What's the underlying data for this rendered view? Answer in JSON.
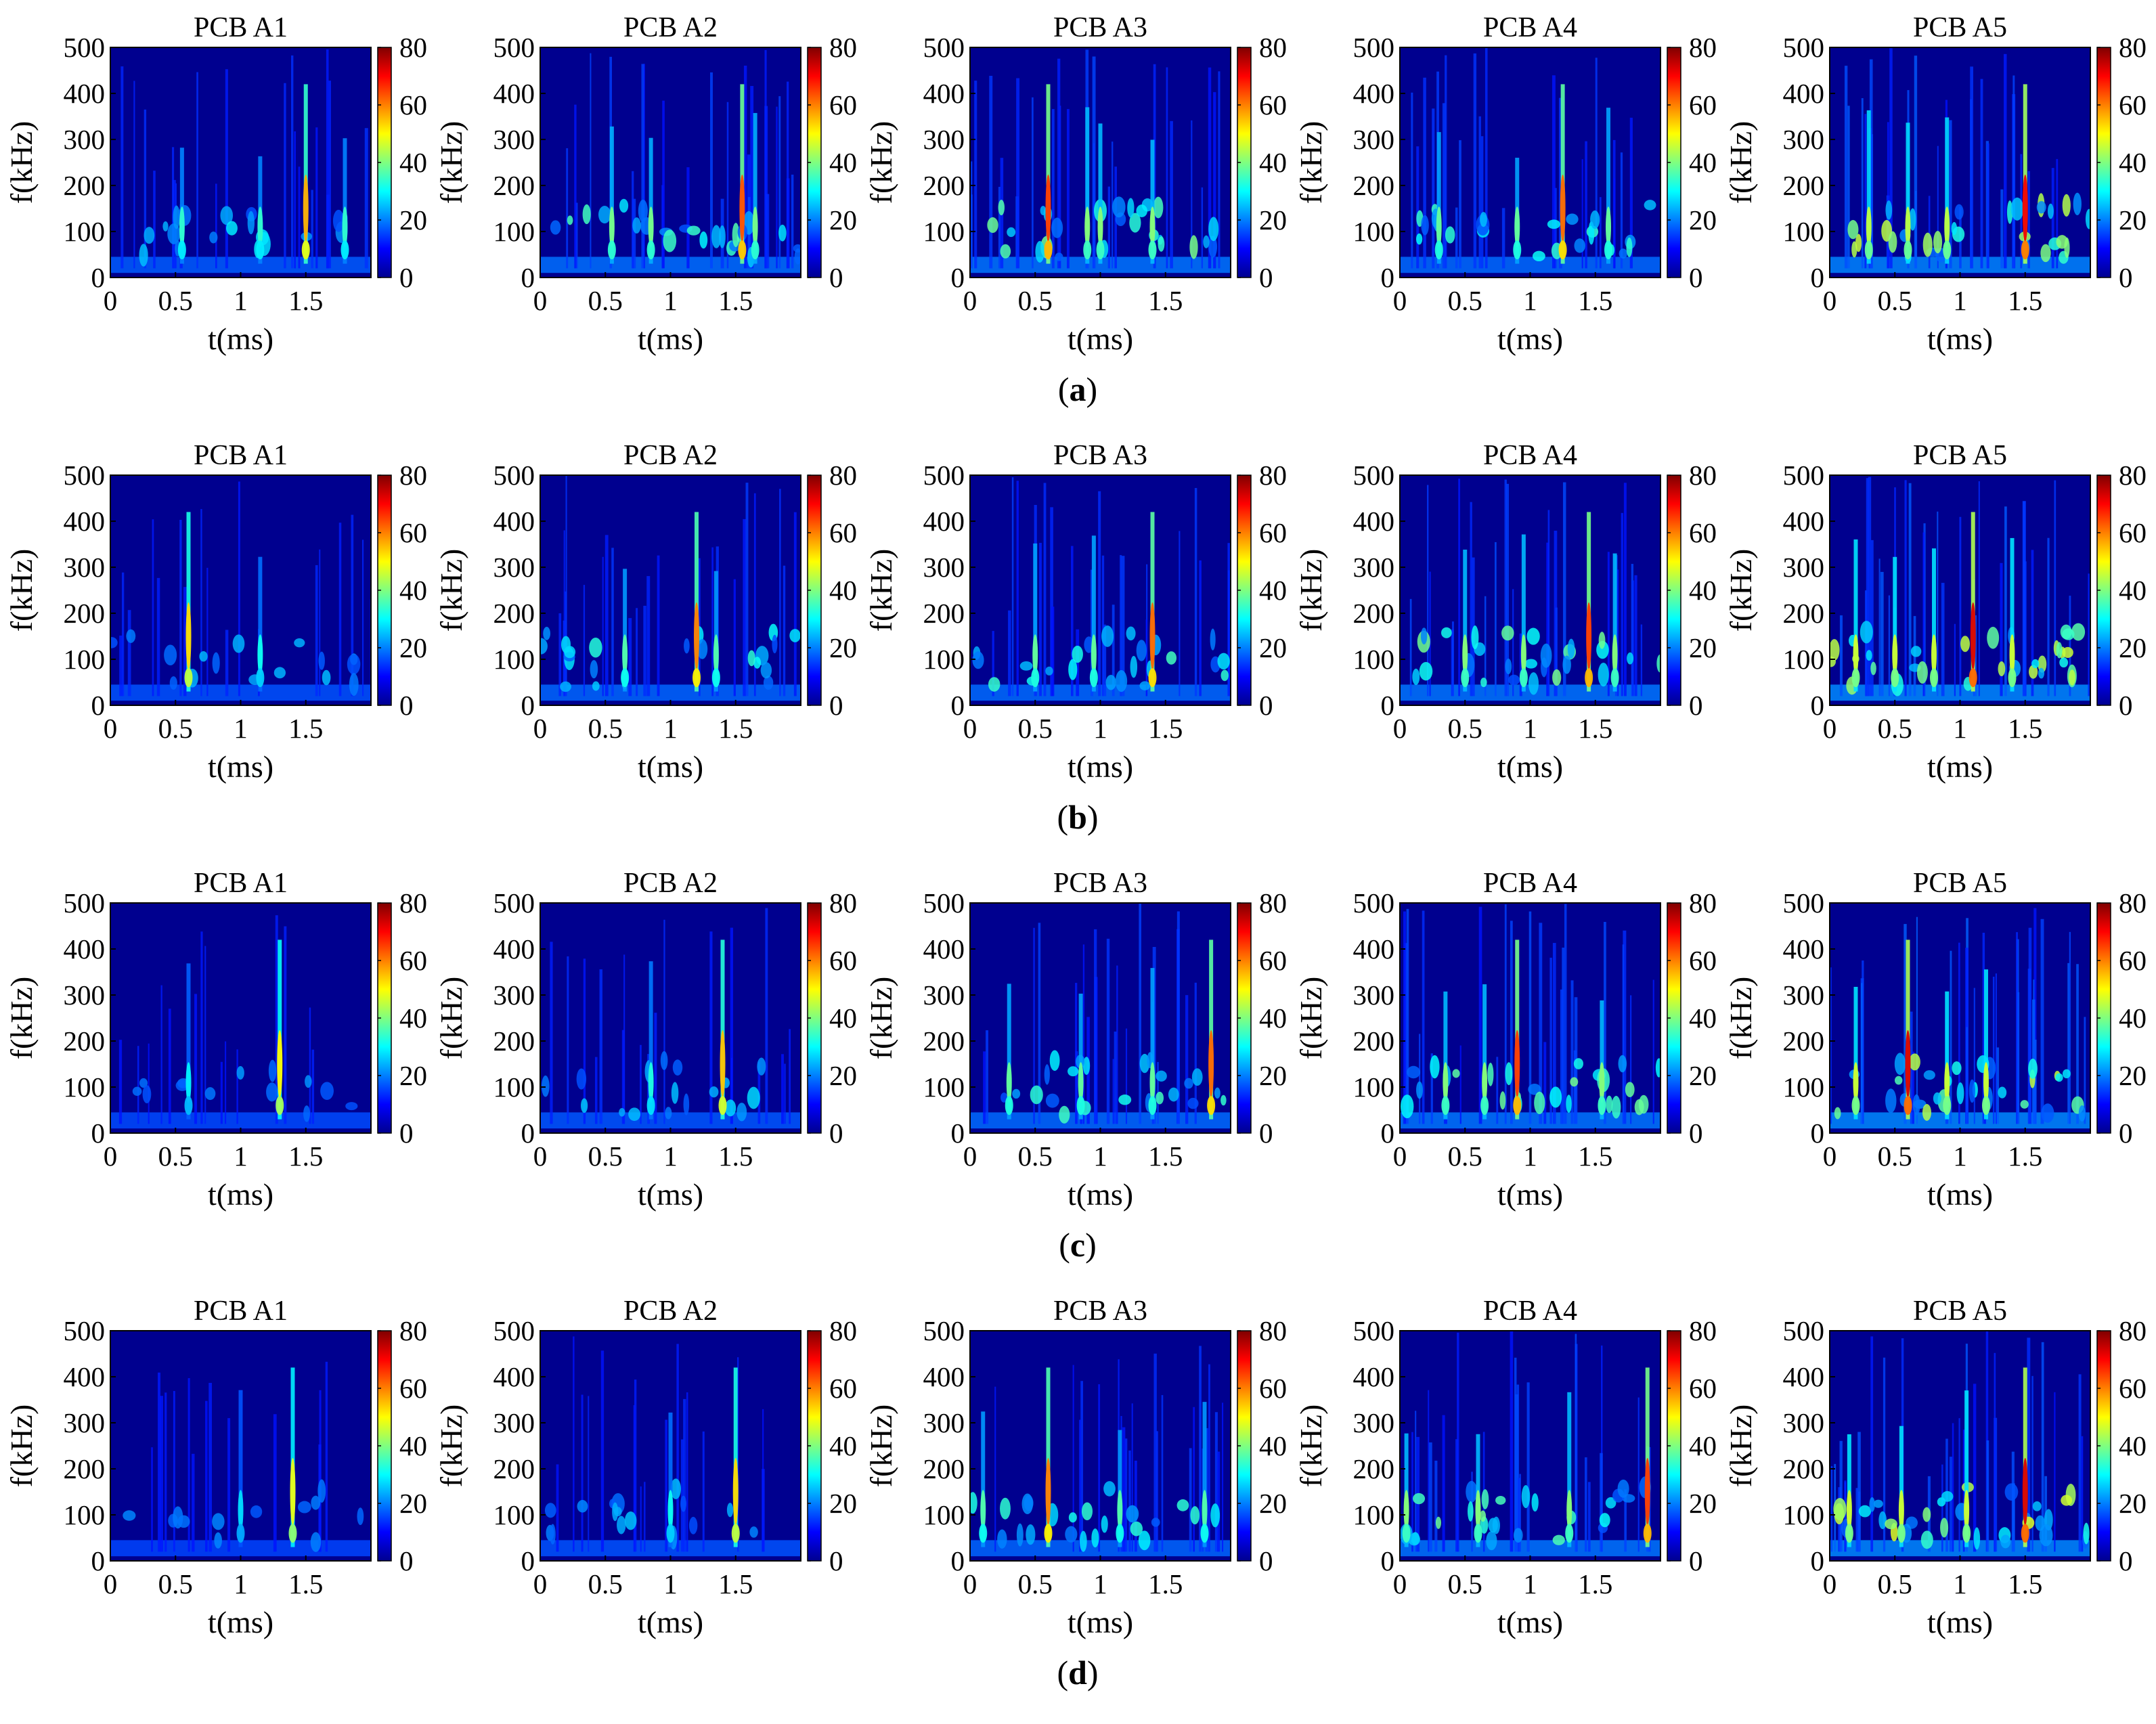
{
  "chart_data": {
    "type": "heatmap",
    "panel_titles": [
      "PCB A1",
      "PCB A2",
      "PCB A3",
      "PCB A4",
      "PCB A5"
    ],
    "row_labels": [
      "(a)",
      "(b)",
      "(c)",
      "(d)"
    ],
    "xlabel": "t(ms)",
    "ylabel": "f(kHz)",
    "xlim": [
      0,
      2
    ],
    "ylim": [
      0,
      500
    ],
    "xticks": [
      "0",
      "0.5",
      "1",
      "1.5"
    ],
    "xtick_values": [
      0,
      0.5,
      1,
      1.5
    ],
    "yticks": [
      "0",
      "100",
      "200",
      "300",
      "400",
      "500"
    ],
    "ytick_values": [
      0,
      100,
      200,
      300,
      400,
      500
    ],
    "colorbar": {
      "range": [
        0,
        80
      ],
      "ticks": [
        "0",
        "20",
        "40",
        "60",
        "80"
      ],
      "tick_values": [
        0,
        20,
        40,
        60,
        80
      ],
      "colormap": "jet"
    },
    "background_color": "#00008f",
    "panels": [
      [
        {
          "row": "(a)",
          "title": "PCB A1",
          "intensity": 0.35,
          "peak_times": [
            0.55,
            1.15,
            1.5,
            1.8
          ],
          "strong_peak_time": 1.5
        },
        {
          "row": "(a)",
          "title": "PCB A2",
          "intensity": 0.55,
          "peak_times": [
            0.55,
            0.85,
            1.55,
            1.65
          ],
          "strong_peak_time": 1.55
        },
        {
          "row": "(a)",
          "title": "PCB A3",
          "intensity": 0.6,
          "peak_times": [
            0.6,
            0.9,
            1.0,
            1.4
          ],
          "strong_peak_time": 0.6
        },
        {
          "row": "(a)",
          "title": "PCB A4",
          "intensity": 0.5,
          "peak_times": [
            0.3,
            0.9,
            1.25,
            1.6
          ],
          "strong_peak_time": 1.25
        },
        {
          "row": "(a)",
          "title": "PCB A5",
          "intensity": 0.75,
          "peak_times": [
            0.3,
            0.6,
            0.9,
            1.5
          ],
          "strong_peak_time": 1.5
        }
      ],
      [
        {
          "row": "(b)",
          "title": "PCB A1",
          "intensity": 0.25,
          "peak_times": [
            0.6,
            1.15
          ],
          "strong_peak_time": 0.6
        },
        {
          "row": "(b)",
          "title": "PCB A2",
          "intensity": 0.45,
          "peak_times": [
            0.65,
            1.2,
            1.35
          ],
          "strong_peak_time": 1.2
        },
        {
          "row": "(b)",
          "title": "PCB A3",
          "intensity": 0.5,
          "peak_times": [
            0.5,
            0.95,
            1.4
          ],
          "strong_peak_time": 1.4
        },
        {
          "row": "(b)",
          "title": "PCB A4",
          "intensity": 0.6,
          "peak_times": [
            0.5,
            0.95,
            1.45,
            1.65
          ],
          "strong_peak_time": 1.45
        },
        {
          "row": "(b)",
          "title": "PCB A5",
          "intensity": 0.8,
          "peak_times": [
            0.2,
            0.5,
            0.8,
            1.1,
            1.4
          ],
          "strong_peak_time": 1.1
        }
      ],
      [
        {
          "row": "(c)",
          "title": "PCB A1",
          "intensity": 0.18,
          "peak_times": [
            0.6,
            1.3
          ],
          "strong_peak_time": 1.3
        },
        {
          "row": "(c)",
          "title": "PCB A2",
          "intensity": 0.3,
          "peak_times": [
            0.85,
            1.4
          ],
          "strong_peak_time": 1.4
        },
        {
          "row": "(c)",
          "title": "PCB A3",
          "intensity": 0.5,
          "peak_times": [
            0.3,
            0.85,
            1.4,
            1.85
          ],
          "strong_peak_time": 1.85
        },
        {
          "row": "(c)",
          "title": "PCB A4",
          "intensity": 0.6,
          "peak_times": [
            0.35,
            0.65,
            0.9,
            1.55
          ],
          "strong_peak_time": 0.9
        },
        {
          "row": "(c)",
          "title": "PCB A5",
          "intensity": 0.8,
          "peak_times": [
            0.2,
            0.6,
            0.9,
            1.2
          ],
          "strong_peak_time": 0.6
        }
      ],
      [
        {
          "row": "(d)",
          "title": "PCB A1",
          "intensity": 0.12,
          "peak_times": [
            1.0,
            1.4
          ],
          "strong_peak_time": 1.4
        },
        {
          "row": "(d)",
          "title": "PCB A2",
          "intensity": 0.25,
          "peak_times": [
            1.0,
            1.5
          ],
          "strong_peak_time": 1.5
        },
        {
          "row": "(d)",
          "title": "PCB A3",
          "intensity": 0.45,
          "peak_times": [
            0.1,
            0.6,
            1.15,
            1.8
          ],
          "strong_peak_time": 0.6
        },
        {
          "row": "(d)",
          "title": "PCB A4",
          "intensity": 0.6,
          "peak_times": [
            0.05,
            0.6,
            1.3,
            1.9
          ],
          "strong_peak_time": 1.9
        },
        {
          "row": "(d)",
          "title": "PCB A5",
          "intensity": 0.8,
          "peak_times": [
            0.15,
            0.55,
            1.05,
            1.5
          ],
          "strong_peak_time": 1.5
        }
      ]
    ]
  }
}
